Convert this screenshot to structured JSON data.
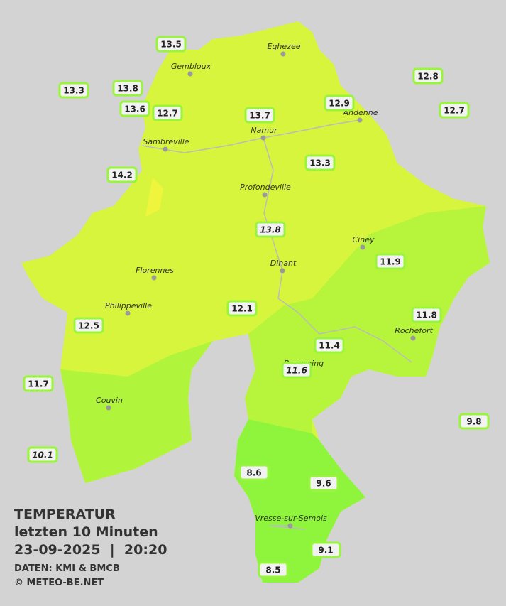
{
  "header": {
    "title": "TEMPERATUR",
    "subtitle": "letzten 10 Minuten",
    "datetime": "23-09-2025  |  20:20",
    "source": "DATEN: KMI & BMCB",
    "credit": "© METEO-BE.NET"
  },
  "cities": [
    "Eghezee",
    "Gembloux",
    "Andenne",
    "Namur",
    "Sambreville",
    "Profondeville",
    "Ciney",
    "Dinant",
    "Florennes",
    "Philippeville",
    "Rochefort",
    "Beauraing",
    "Couvin",
    "Vresse-sur-Semois"
  ],
  "stations": [
    13.5,
    13.3,
    13.8,
    13.6,
    12.7,
    13.7,
    12.9,
    12.8,
    12.7,
    14.2,
    13.3,
    13.8,
    11.9,
    12.1,
    11.8,
    12.5,
    11.4,
    11.6,
    11.7,
    9.8,
    10.1,
    8.6,
    9.6,
    9.1,
    8.5
  ]
}
